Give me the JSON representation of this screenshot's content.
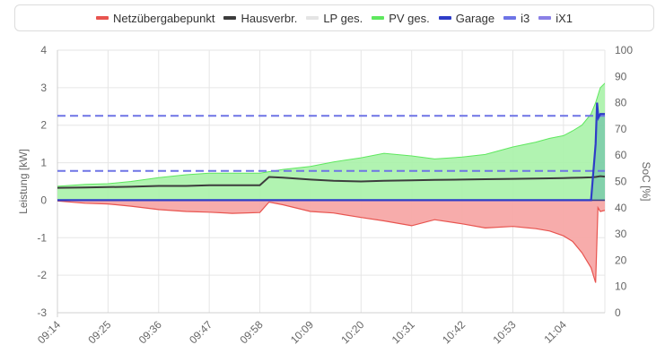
{
  "legend": {
    "items": [
      {
        "label": "Netzübergabepunkt",
        "color": "#e8544f"
      },
      {
        "label": "Hausverbr.",
        "color": "#3c3c3c"
      },
      {
        "label": "LP ges.",
        "color": "#e4e4e4"
      },
      {
        "label": "PV ges.",
        "color": "#5ee85e"
      },
      {
        "label": "Garage",
        "color": "#2e3cc8"
      },
      {
        "label": "i3",
        "color": "#6e74e6"
      },
      {
        "label": "iX1",
        "color": "#8a80e6"
      }
    ]
  },
  "chart_data": {
    "type": "area",
    "ylabel": "Leistung [kW]",
    "y2label": "SoC [%]",
    "ylim": [
      -3,
      4
    ],
    "yticks": [
      "4",
      "3",
      "2",
      "1",
      "0",
      "-1",
      "-2",
      "-3"
    ],
    "y2lim": [
      0,
      100
    ],
    "y2ticks": [
      "100",
      "90",
      "80",
      "70",
      "60",
      "50",
      "40",
      "30",
      "20",
      "10",
      "0"
    ],
    "xticks": [
      "09:14",
      "09:25",
      "09:36",
      "09:47",
      "09:58",
      "10:09",
      "10:20",
      "10:31",
      "10:42",
      "10:53",
      "11:04"
    ],
    "xlim": [
      "09:14",
      "11:13"
    ],
    "grid": true,
    "legend_position": "top",
    "colors": {
      "netz_line": "#e8544f",
      "netz_fill": "#f7a8a6",
      "pv_line": "#5ee85e",
      "pv_fill": "#a8f2a8",
      "haus": "#3c3c3c",
      "garage": "#2e3cc8",
      "soc_dash": "#6e74e6",
      "garage_fill": "#6fc2a8"
    },
    "series": [
      {
        "name": "PV ges.",
        "x": [
          "09:14",
          "09:20",
          "09:25",
          "09:30",
          "09:36",
          "09:42",
          "09:47",
          "09:52",
          "09:58",
          "10:03",
          "10:09",
          "10:14",
          "10:20",
          "10:25",
          "10:31",
          "10:36",
          "10:42",
          "10:47",
          "10:53",
          "10:58",
          "11:01",
          "11:04",
          "11:06",
          "11:08",
          "11:10",
          "11:11",
          "11:12",
          "11:13"
        ],
        "values": [
          0.37,
          0.42,
          0.44,
          0.5,
          0.6,
          0.68,
          0.72,
          0.72,
          0.72,
          0.82,
          0.9,
          1.02,
          1.13,
          1.25,
          1.18,
          1.1,
          1.15,
          1.22,
          1.42,
          1.55,
          1.65,
          1.72,
          1.85,
          2.0,
          2.3,
          2.6,
          3.0,
          3.12
        ]
      },
      {
        "name": "Netzübergabepunkt",
        "x": [
          "09:14",
          "09:20",
          "09:25",
          "09:30",
          "09:36",
          "09:42",
          "09:47",
          "09:52",
          "09:58",
          "10:00",
          "10:03",
          "10:09",
          "10:14",
          "10:20",
          "10:25",
          "10:31",
          "10:36",
          "10:42",
          "10:47",
          "10:53",
          "10:58",
          "11:01",
          "11:04",
          "11:06",
          "11:08",
          "11:10",
          "11:11",
          "11:11.5",
          "11:12",
          "11:13"
        ],
        "values": [
          -0.02,
          -0.08,
          -0.1,
          -0.16,
          -0.25,
          -0.3,
          -0.32,
          -0.35,
          -0.33,
          -0.05,
          -0.12,
          -0.3,
          -0.34,
          -0.46,
          -0.55,
          -0.68,
          -0.52,
          -0.63,
          -0.74,
          -0.7,
          -0.76,
          -0.82,
          -0.95,
          -1.1,
          -1.4,
          -1.8,
          -2.2,
          -0.2,
          -0.3,
          -0.27
        ]
      },
      {
        "name": "Hausverbr.",
        "x": [
          "09:14",
          "09:20",
          "09:25",
          "09:30",
          "09:36",
          "09:42",
          "09:47",
          "09:52",
          "09:58",
          "10:00",
          "10:03",
          "10:09",
          "10:14",
          "10:20",
          "10:25",
          "10:31",
          "10:36",
          "10:42",
          "10:47",
          "10:53",
          "10:58",
          "11:04",
          "11:08",
          "11:10",
          "11:11",
          "11:12",
          "11:13"
        ],
        "values": [
          0.33,
          0.34,
          0.35,
          0.36,
          0.38,
          0.38,
          0.4,
          0.4,
          0.4,
          0.62,
          0.6,
          0.55,
          0.52,
          0.5,
          0.52,
          0.53,
          0.54,
          0.55,
          0.56,
          0.57,
          0.58,
          0.59,
          0.6,
          0.61,
          0.62,
          0.64,
          0.63
        ]
      },
      {
        "name": "Garage",
        "x": [
          "09:14",
          "11:10",
          "11:11",
          "11:11.3",
          "11:11.6",
          "11:12",
          "11:13"
        ],
        "values": [
          0,
          0,
          1.5,
          2.6,
          2.2,
          2.3,
          2.3
        ]
      }
    ],
    "soc_series": [
      {
        "name": "i3",
        "soc_percent": 75
      },
      {
        "name": "iX1",
        "soc_percent": 54
      }
    ]
  }
}
